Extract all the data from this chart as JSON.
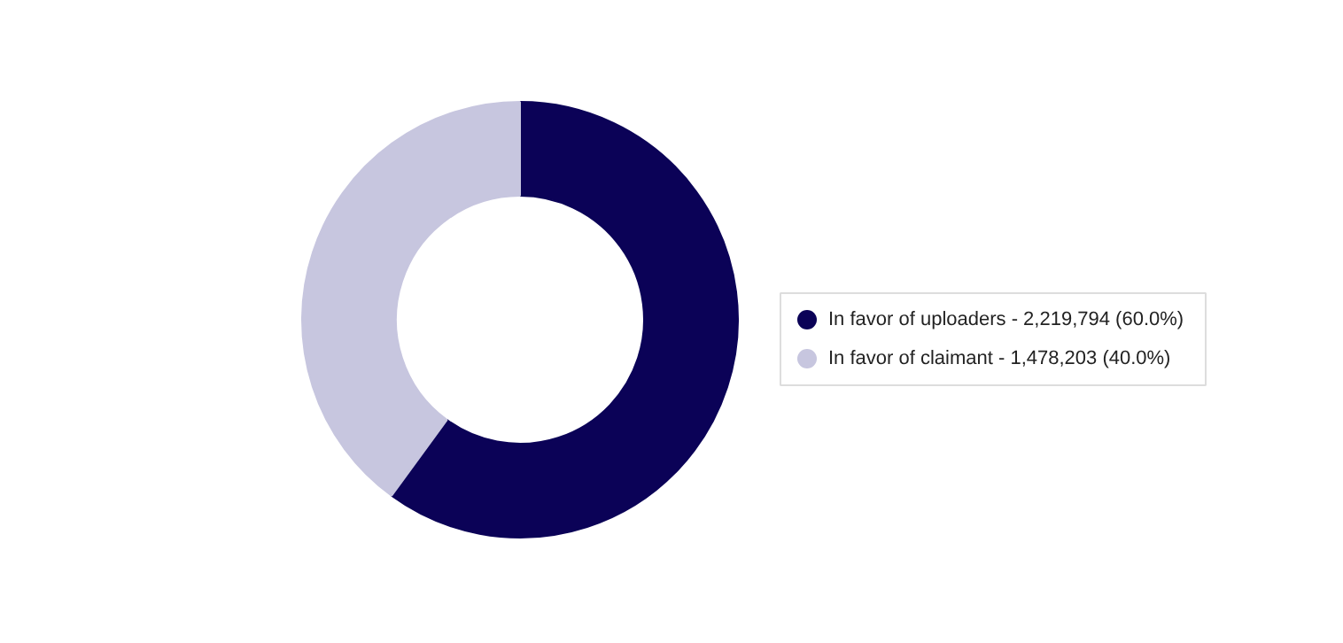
{
  "chart_data": {
    "type": "donut",
    "categories": [
      "In favor of uploaders",
      "In favor of claimant"
    ],
    "values": [
      2219794,
      1478203
    ],
    "value_labels": [
      "2,219,794 (60.0%)",
      "1,478,203 (40.0%)"
    ],
    "colors": [
      "#0b0257",
      "#c7c6df"
    ],
    "legend": "right"
  }
}
